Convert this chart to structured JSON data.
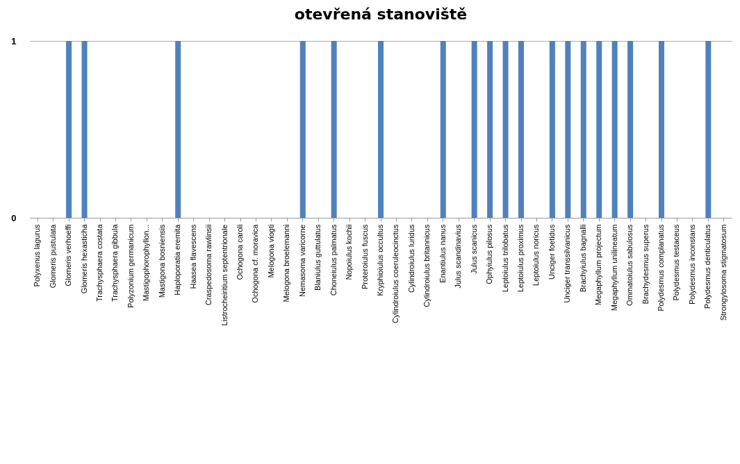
{
  "chart_data": {
    "type": "bar",
    "title": "otevřená stanoviště",
    "categories": [
      "Polyxenus lagurus",
      "Glomeris pustulata",
      "Glomeris verhoeffi",
      "Glomeris hexasticha",
      "Trachysphaera costata",
      "Trachysphaera gibbula",
      "Polyzonium germanicum",
      "Mastigophorophyllon...",
      "Mastigona bosniensis",
      "Haploporatia eremita",
      "Haasea flavescens",
      "Craspedosoma rawlinsii",
      "Listrocheiritium septentrionale",
      "Ochogona caroli",
      "Ochogona cf. moravica",
      "Melogona viogti",
      "Melogona broelemanni",
      "Nemasoma varicorne",
      "Blaniulus guttulatus",
      "Choneiulus palmatus",
      "Nopoiulus kochii",
      "Proteroiulus fuscus",
      "Kryphioiulus occultus",
      "Cylindroiulus coeruleocinctus",
      "Cylindroiulus luridus",
      "Cylindroiulus britannicus",
      "Enantiulus nanus",
      "Julus scandinavius",
      "Julus scanicus",
      "Ophyiulus pilosus",
      "Leptoiulus trilobatus",
      "Leptoiulus proximus",
      "Leptoiulus noricus",
      "Unciger foetidus",
      "Unciger transsilvanicus",
      "Brachyiulus bagnalli",
      "Megaphyllum projectum",
      "Megaphyllum unilineatum",
      "Ommatoiulus sabulosus",
      "Brachydesmus superus",
      "Polydesmus complanatus",
      "Polydesmus testaceus",
      "Polydesmus inconstans",
      "Polydesmus denticulatus",
      "Strongylosoma stigmatosum"
    ],
    "values": [
      0,
      0,
      1,
      1,
      0,
      0,
      0,
      0,
      0,
      1,
      0,
      0,
      0,
      0,
      0,
      0,
      0,
      1,
      0,
      1,
      0,
      0,
      1,
      0,
      0,
      0,
      1,
      0,
      1,
      1,
      1,
      1,
      0,
      1,
      1,
      1,
      1,
      1,
      1,
      0,
      1,
      0,
      0,
      1,
      0
    ],
    "color": "#4f81bd",
    "ylim": [
      0,
      1
    ],
    "yticks": [
      0,
      1
    ],
    "grid": "y"
  }
}
